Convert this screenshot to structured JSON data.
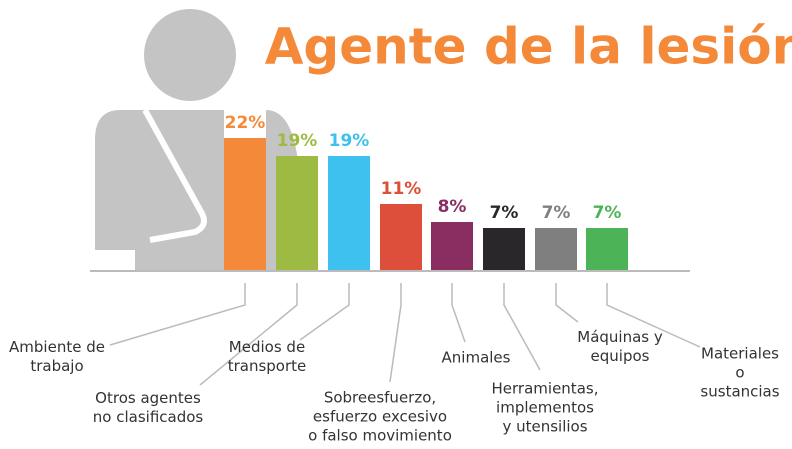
{
  "chart_data": {
    "type": "bar",
    "title": "Agente de la lesión",
    "categories": [
      "Ambiente de\ntrabajo",
      "Otros agentes\nno clasificados",
      "Medios de\ntransporte",
      "Sobreesfuerzo,\nesfuerzo excesivo\no falso movimiento",
      "Animales",
      "Herramientas,\nimplementos\ny utensilios",
      "Máquinas y\nequipos",
      "Materiales o\nsustancias"
    ],
    "values": [
      22,
      19,
      19,
      11,
      8,
      7,
      7,
      7
    ],
    "value_labels": [
      "22%",
      "19%",
      "19%",
      "11%",
      "8%",
      "7%",
      "7%",
      "7%"
    ],
    "colors": [
      "#f5893a",
      "#9dba43",
      "#3ec1ef",
      "#dd4f3a",
      "#8a2e62",
      "#2a272a",
      "#7f7f7f",
      "#4db357"
    ]
  }
}
